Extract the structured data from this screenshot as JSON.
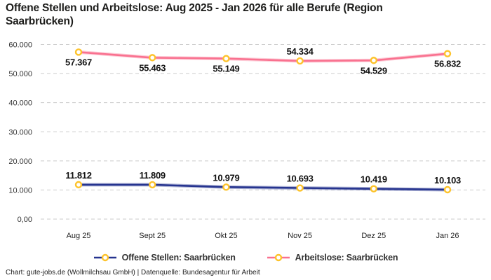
{
  "title": "Offene Stellen und Arbeitslose: Aug 2025 - Jan 2026 für alle Berufe (Region Saarbrücken)",
  "footer": "Chart: gute-jobs.de (Wollmilchsau GmbH) | Datenquelle: Bundesagentur für Arbeit",
  "colors": {
    "open_positions_line": "#26348F",
    "unemployed_line": "#F9718F",
    "marker_ring": "#FDC32B",
    "marker_fill": "#FFFFFF",
    "gridline": "#CBCBCB",
    "title_text": "#1D1D1B",
    "axis_text": "#333333"
  },
  "chart_data": {
    "type": "line",
    "categories": [
      "Aug 25",
      "Sept 25",
      "Okt 25",
      "Nov 25",
      "Dez 25",
      "Jan 26"
    ],
    "series": [
      {
        "name": "Offene Stellen: Saarbrücken",
        "color": "#26348F",
        "values": [
          11812,
          11809,
          10979,
          10693,
          10419,
          10103
        ],
        "labels": [
          "11.812",
          "11.809",
          "10.979",
          "10.693",
          "10.419",
          "10.103"
        ],
        "label_positions": [
          "above",
          "above",
          "above",
          "above",
          "above",
          "above"
        ]
      },
      {
        "name": "Arbeitslose: Saarbrücken",
        "color": "#F9718F",
        "values": [
          57367,
          55463,
          55149,
          54334,
          54529,
          56832
        ],
        "labels": [
          "57.367",
          "55.463",
          "55.149",
          "54.334",
          "54.529",
          "56.832"
        ],
        "label_positions": [
          "below",
          "below",
          "below",
          "above",
          "below",
          "below"
        ]
      }
    ],
    "title": "Offene Stellen und Arbeitslose: Aug 2025 - Jan 2026 für alle Berufe (Region Saarbrücken)",
    "xlabel": "",
    "ylabel": "",
    "ylim": [
      0,
      60000
    ],
    "ytick_step": 10000,
    "ytick_labels": [
      "0,00",
      "10.000",
      "20.000",
      "30.000",
      "40.000",
      "50.000",
      "60.000"
    ],
    "grid": true,
    "marker_style": "circle-open",
    "legend_position": "bottom"
  }
}
